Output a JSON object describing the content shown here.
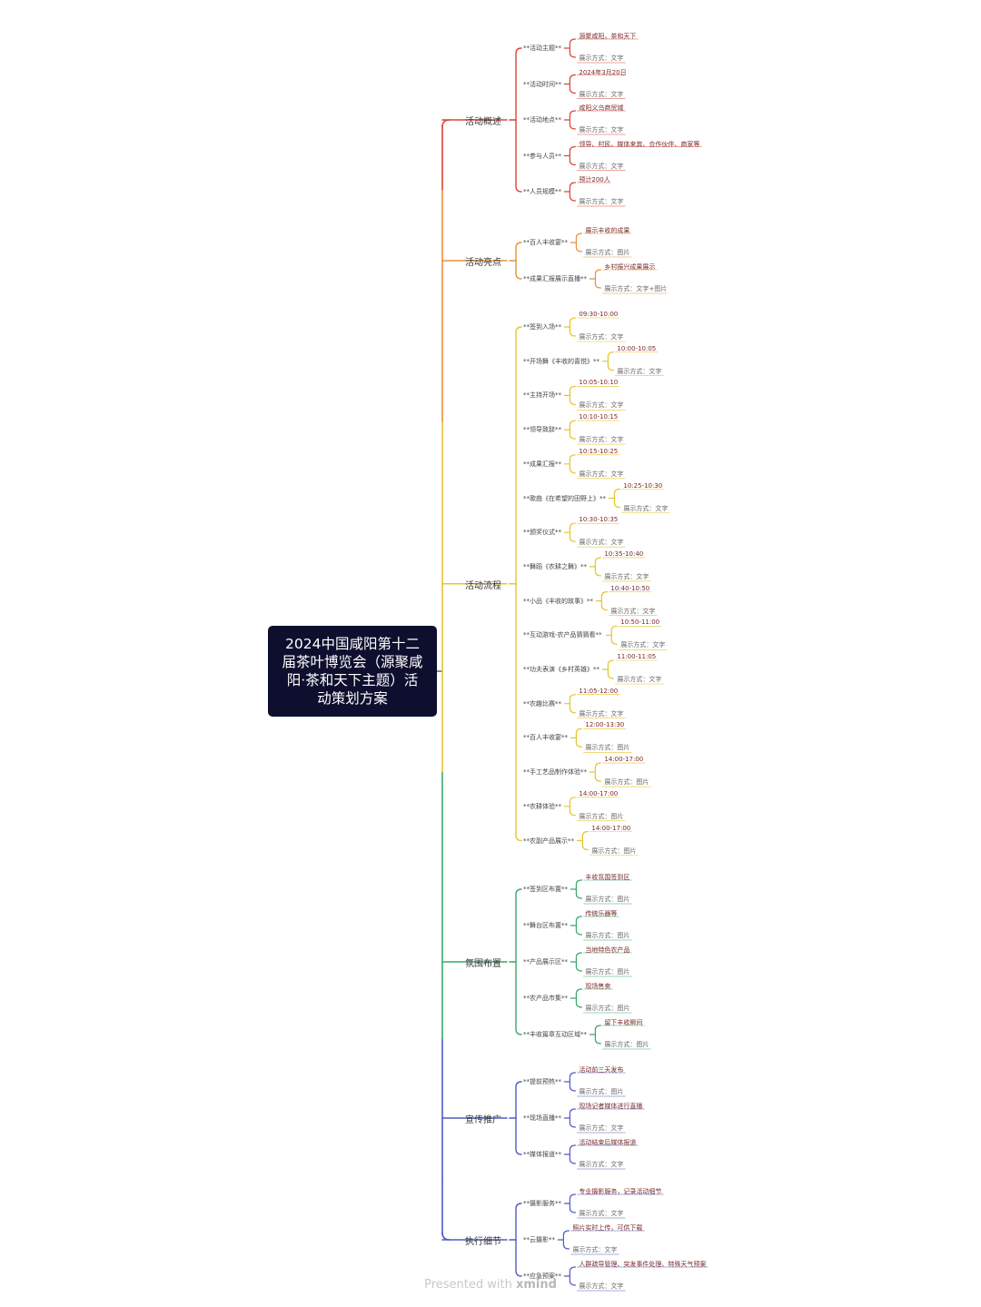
{
  "root": {
    "title_lines": [
      "2024中国咸阳第十二",
      "届茶叶博览会（源聚咸",
      "阳·茶和天下主题）活",
      "动策划方案"
    ]
  },
  "branches": [
    {
      "label": "活动概述",
      "color": "#d9453b",
      "items": [
        {
          "label": "**活动主题**",
          "value": "源聚咸阳，茶和天下",
          "display": "展示方式：文字"
        },
        {
          "label": "**活动时间**",
          "value": "2024年3月20日",
          "display": "展示方式：文字"
        },
        {
          "label": "**活动地点**",
          "value": "咸阳义乌商贸城",
          "display": "展示方式：文字"
        },
        {
          "label": "**参与人员**",
          "value": "领导、村民、媒体来宾、合作伙伴、商家等",
          "display": "展示方式：文字"
        },
        {
          "label": "**人员规模**",
          "value": "预计200人",
          "display": "展示方式：文字"
        }
      ]
    },
    {
      "label": "活动亮点",
      "color": "#e8913a",
      "items": [
        {
          "label": "**百人丰收宴**",
          "value": "展示丰收的成果",
          "display": "展示方式：图片"
        },
        {
          "label": "**成果汇报展示直播**",
          "value": "乡村振兴成果展示",
          "display": "展示方式：文字+图片"
        }
      ]
    },
    {
      "label": "活动流程",
      "color": "#e8c52e",
      "items": [
        {
          "label": "**签到入场**",
          "value": "09:30-10:00",
          "display": "展示方式：文字"
        },
        {
          "label": "**开场舞《丰收的喜悦》**",
          "value": "10:00-10:05",
          "display": "展示方式：文字"
        },
        {
          "label": "**主持开场**",
          "value": "10:05-10:10",
          "display": "展示方式：文字"
        },
        {
          "label": "**领导致辞**",
          "value": "10:10-10:15",
          "display": "展示方式：文字"
        },
        {
          "label": "**成果汇报**",
          "value": "10:15-10:25",
          "display": "展示方式：文字"
        },
        {
          "label": "**歌曲《在希望的田野上》**",
          "value": "10:25-10:30",
          "display": "展示方式：文字"
        },
        {
          "label": "**颁奖仪式**",
          "value": "10:30-10:35",
          "display": "展示方式：文字"
        },
        {
          "label": "**舞蹈《农耕之舞》**",
          "value": "10:35-10:40",
          "display": "展示方式：文字"
        },
        {
          "label": "**小品《丰收的故事》**",
          "value": "10:40-10:50",
          "display": "展示方式：文字"
        },
        {
          "label": "**互动游戏-农产品猜猜看**",
          "value": "10:50-11:00",
          "display": "展示方式：文字"
        },
        {
          "label": "**功夫表演《乡村英雄》**",
          "value": "11:00-11:05",
          "display": "展示方式：文字"
        },
        {
          "label": "**农趣比赛**",
          "value": "11:05-12:00",
          "display": "展示方式：文字"
        },
        {
          "label": "**百人丰收宴**",
          "value": "12:00-13:30",
          "display": "展示方式：图片"
        },
        {
          "label": "**手工艺品制作体验**",
          "value": "14:00-17:00",
          "display": "展示方式：图片"
        },
        {
          "label": "**农耕体验**",
          "value": "14:00-17:00",
          "display": "展示方式：图片"
        },
        {
          "label": "**农副产品展示**",
          "value": "14:00-17:00",
          "display": "展示方式：图片"
        }
      ]
    },
    {
      "label": "氛围布置",
      "color": "#3aa86a",
      "items": [
        {
          "label": "**签到区布置**",
          "value": "丰收氛围签到区",
          "display": "展示方式：图片"
        },
        {
          "label": "**舞台区布置**",
          "value": "传统乐器等",
          "display": "展示方式：图片"
        },
        {
          "label": "**产品展示区**",
          "value": "当地特色农产品",
          "display": "展示方式：图片"
        },
        {
          "label": "**农产品市集**",
          "value": "现场售卖",
          "display": "展示方式：图片"
        },
        {
          "label": "**丰收篇章互动区域**",
          "value": "留下丰收瞬间",
          "display": "展示方式：图片"
        }
      ]
    },
    {
      "label": "宣传推广",
      "color": "#4f5bc4",
      "items": [
        {
          "label": "**提前预热**",
          "value": "活动前三天发布",
          "display": "展示方式：图片"
        },
        {
          "label": "**现场直播**",
          "value": "现场记者媒体进行直播",
          "display": "展示方式：文字"
        },
        {
          "label": "**媒体报道**",
          "value": "活动结束后媒体报道",
          "display": "展示方式：文字"
        }
      ]
    },
    {
      "label": "执行细节",
      "color": "#4f5bc4",
      "items": [
        {
          "label": "**摄影服务**",
          "value": "专业摄影服务，记录活动细节",
          "display": "展示方式：文字"
        },
        {
          "label": "**云摄影**",
          "value": "照片实时上传，可供下载",
          "display": "展示方式：文字"
        },
        {
          "label": "**应急预案**",
          "value": "人群疏导管理、突发事件处理、特殊天气预案",
          "display": "展示方式：文字"
        }
      ]
    }
  ],
  "footer": {
    "prefix": "Presented with",
    "brand": "xmind"
  }
}
